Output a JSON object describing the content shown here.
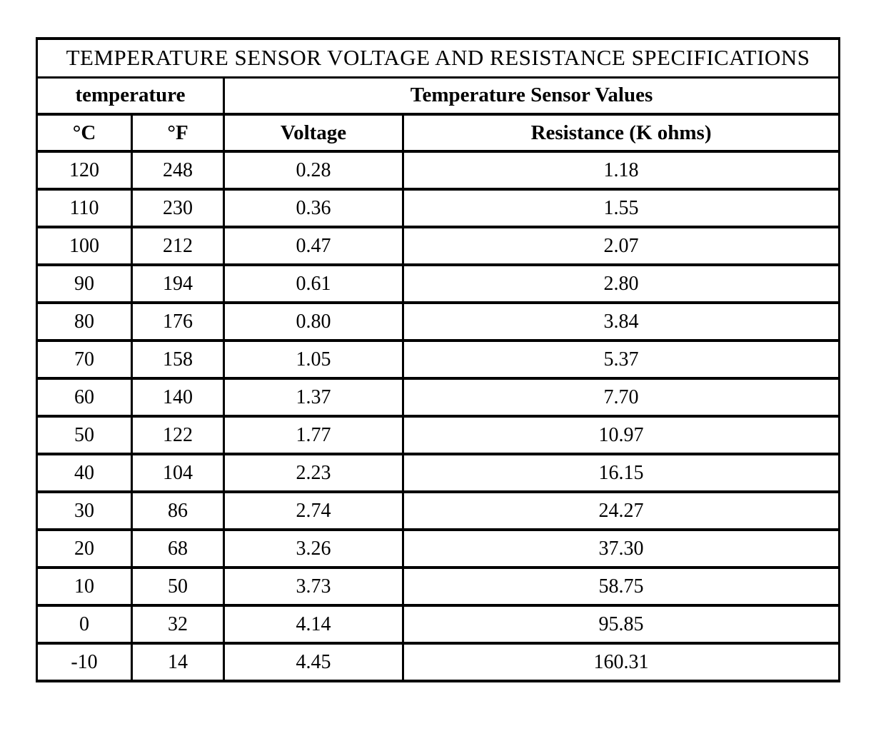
{
  "page": {
    "background_color": "#ffffff",
    "text_color": "#000000",
    "border_color": "#000000"
  },
  "table": {
    "title": "TEMPERATURE SENSOR VOLTAGE AND RESISTANCE SPECIFICATIONS",
    "group_headers": {
      "temperature": "temperature",
      "sensor_values": "Temperature Sensor Values"
    },
    "column_headers": {
      "celsius": "°C",
      "fahrenheit": "°F",
      "voltage": "Voltage",
      "resistance": "Resistance (K ohms)"
    },
    "rows": [
      {
        "c": "120",
        "f": "248",
        "voltage": "0.28",
        "resistance": "1.18"
      },
      {
        "c": "110",
        "f": "230",
        "voltage": "0.36",
        "resistance": "1.55"
      },
      {
        "c": "100",
        "f": "212",
        "voltage": "0.47",
        "resistance": "2.07"
      },
      {
        "c": "90",
        "f": "194",
        "voltage": "0.61",
        "resistance": "2.80"
      },
      {
        "c": "80",
        "f": "176",
        "voltage": "0.80",
        "resistance": "3.84"
      },
      {
        "c": "70",
        "f": "158",
        "voltage": "1.05",
        "resistance": "5.37"
      },
      {
        "c": "60",
        "f": "140",
        "voltage": "1.37",
        "resistance": "7.70"
      },
      {
        "c": "50",
        "f": "122",
        "voltage": "1.77",
        "resistance": "10.97"
      },
      {
        "c": "40",
        "f": "104",
        "voltage": "2.23",
        "resistance": "16.15"
      },
      {
        "c": "30",
        "f": "86",
        "voltage": "2.74",
        "resistance": "24.27"
      },
      {
        "c": "20",
        "f": "68",
        "voltage": "3.26",
        "resistance": "37.30"
      },
      {
        "c": "10",
        "f": "50",
        "voltage": "3.73",
        "resistance": "58.75"
      },
      {
        "c": "0",
        "f": "32",
        "voltage": "4.14",
        "resistance": "95.85"
      },
      {
        "c": "-10",
        "f": "14",
        "voltage": "4.45",
        "resistance": "160.31"
      }
    ]
  },
  "chart_data": {
    "type": "table",
    "title": "TEMPERATURE SENSOR VOLTAGE AND RESISTANCE SPECIFICATIONS",
    "columns": [
      "°C",
      "°F",
      "Voltage",
      "Resistance (K ohms)"
    ],
    "rows": [
      [
        120,
        248,
        0.28,
        1.18
      ],
      [
        110,
        230,
        0.36,
        1.55
      ],
      [
        100,
        212,
        0.47,
        2.07
      ],
      [
        90,
        194,
        0.61,
        2.8
      ],
      [
        80,
        176,
        0.8,
        3.84
      ],
      [
        70,
        158,
        1.05,
        5.37
      ],
      [
        60,
        140,
        1.37,
        7.7
      ],
      [
        50,
        122,
        1.77,
        10.97
      ],
      [
        40,
        104,
        2.23,
        16.15
      ],
      [
        30,
        86,
        2.74,
        24.27
      ],
      [
        20,
        68,
        3.26,
        37.3
      ],
      [
        10,
        50,
        3.73,
        58.75
      ],
      [
        0,
        32,
        4.14,
        95.85
      ],
      [
        -10,
        14,
        4.45,
        160.31
      ]
    ]
  }
}
